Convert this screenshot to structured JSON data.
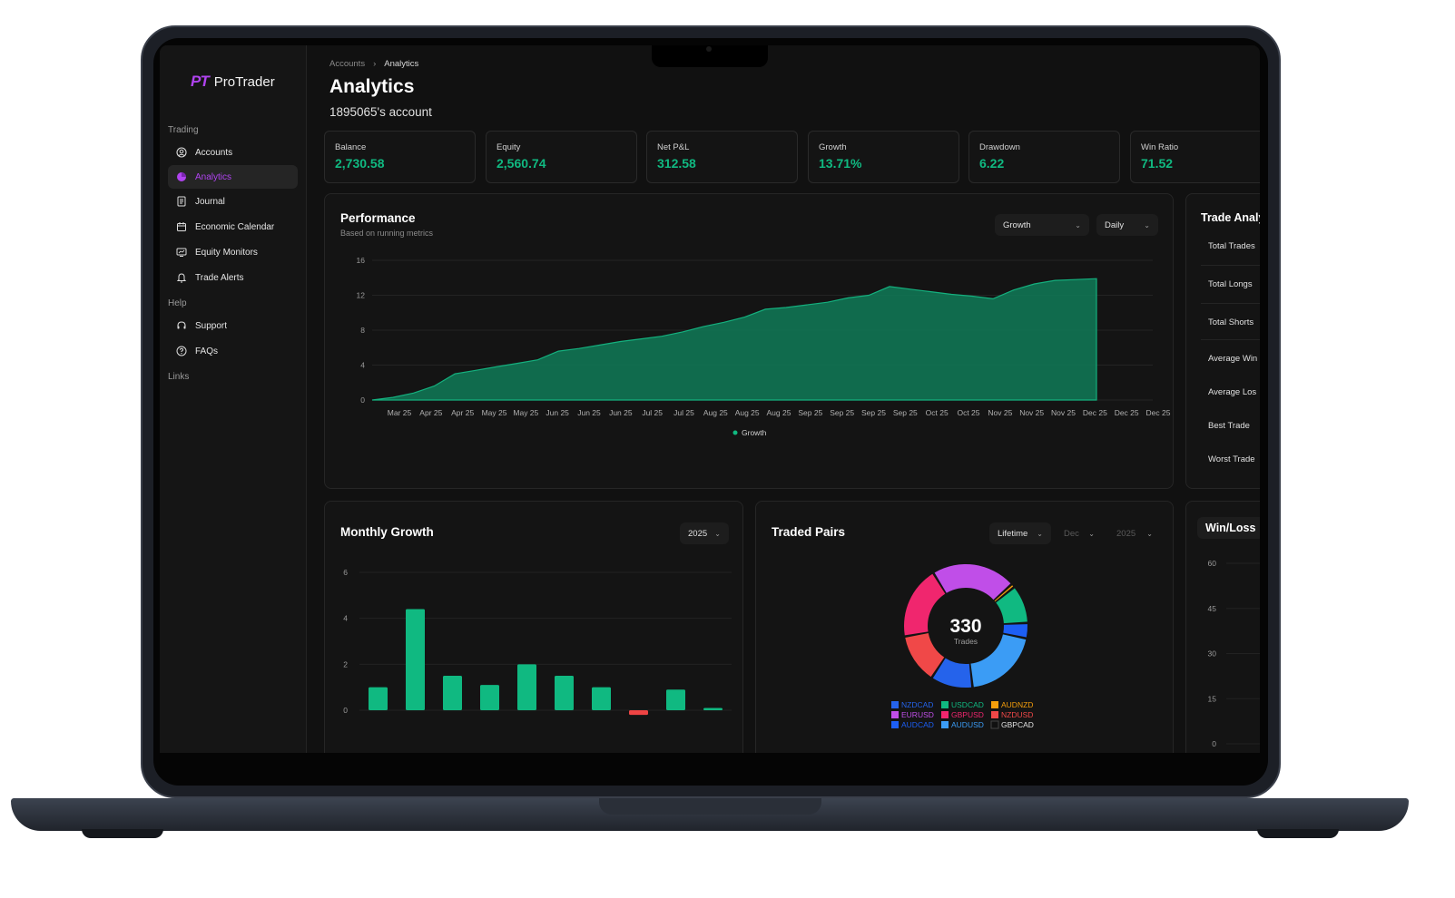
{
  "brand": {
    "mark": "PT",
    "name": "ProTrader"
  },
  "sidebar": {
    "sections": {
      "trading": "Trading",
      "help": "Help",
      "links": "Links"
    },
    "items": [
      {
        "label": "Accounts",
        "icon": "user-circle-icon",
        "active": false
      },
      {
        "label": "Analytics",
        "icon": "pie-chart-icon",
        "active": true
      },
      {
        "label": "Journal",
        "icon": "journal-icon",
        "active": false
      },
      {
        "label": "Economic Calendar",
        "icon": "calendar-icon",
        "active": false
      },
      {
        "label": "Equity Monitors",
        "icon": "monitor-icon",
        "active": false
      },
      {
        "label": "Trade Alerts",
        "icon": "bell-icon",
        "active": false
      }
    ],
    "help_items": [
      {
        "label": "Support",
        "icon": "headset-icon"
      },
      {
        "label": "FAQs",
        "icon": "question-icon"
      }
    ]
  },
  "breadcrumb": {
    "parent": "Accounts",
    "separator": "›",
    "current": "Analytics"
  },
  "page": {
    "title": "Analytics",
    "subtitle": "1895065's account"
  },
  "stats": [
    {
      "label": "Balance",
      "value": "2,730.58"
    },
    {
      "label": "Equity",
      "value": "2,560.74"
    },
    {
      "label": "Net P&L",
      "value": "312.58"
    },
    {
      "label": "Growth",
      "value": "13.71%"
    },
    {
      "label": "Drawdown",
      "value": "6.22"
    },
    {
      "label": "Win Ratio",
      "value": "71.52"
    }
  ],
  "performance": {
    "title": "Performance",
    "subtitle": "Based on running metrics",
    "metric_select": "Growth",
    "period_select": "Daily",
    "legend": "Growth"
  },
  "trade_analysis": {
    "title": "Trade Analy",
    "rows": [
      "Total Trades",
      "Total Longs",
      "Total Shorts",
      "Average Win",
      "Average Los",
      "Best Trade",
      "Worst Trade"
    ]
  },
  "monthly_growth": {
    "title": "Monthly Growth",
    "year_select": "2025"
  },
  "traded_pairs": {
    "title": "Traded Pairs",
    "range_select": "Lifetime",
    "month_select": "Dec",
    "year_select": "2025",
    "center_value": "330",
    "center_label": "Trades",
    "legend": [
      {
        "name": "NZDCAD",
        "color": "#2563eb"
      },
      {
        "name": "USDCAD",
        "color": "#10b981"
      },
      {
        "name": "AUDNZD",
        "color": "#f59e0b"
      },
      {
        "name": "EURUSD",
        "color": "#c04ee8"
      },
      {
        "name": "GBPUSD",
        "color": "#f0266e"
      },
      {
        "name": "NZDUSD",
        "color": "#f04848"
      },
      {
        "name": "AUDCAD",
        "color": "#1d5ff5"
      },
      {
        "name": "AUDUSD",
        "color": "#3b9cf5"
      },
      {
        "name": "GBPCAD",
        "color": "#111111"
      }
    ]
  },
  "win_loss": {
    "title": "Win/Loss"
  },
  "chart_data": [
    {
      "type": "area",
      "title": "Performance",
      "ylim": [
        0,
        16
      ],
      "yticks": [
        0,
        4,
        8,
        12,
        16
      ],
      "xticks": [
        "Mar 25",
        "Apr 25",
        "Apr 25",
        "May 25",
        "May 25",
        "Jun 25",
        "Jun 25",
        "Jun 25",
        "Jul 25",
        "Jul 25",
        "Aug 25",
        "Aug 25",
        "Aug 25",
        "Sep 25",
        "Sep 25",
        "Sep 25",
        "Sep 25",
        "Oct 25",
        "Oct 25",
        "Nov 25",
        "Nov 25",
        "Nov 25",
        "Dec 25",
        "Dec 25",
        "Dec 25"
      ],
      "series": [
        {
          "name": "Growth",
          "color": "#0f7a57",
          "points": [
            0,
            0.3,
            0.8,
            1.6,
            3.0,
            3.4,
            3.8,
            4.2,
            4.6,
            5.6,
            5.9,
            6.3,
            6.7,
            7.0,
            7.3,
            7.8,
            8.4,
            8.9,
            9.5,
            10.4,
            10.6,
            10.9,
            11.2,
            11.7,
            12.0,
            13.0,
            12.7,
            12.4,
            12.1,
            11.9,
            11.6,
            12.6,
            13.3,
            13.7,
            13.8,
            13.9
          ]
        }
      ],
      "grid": true,
      "legend_position": "bottom"
    },
    {
      "type": "bar",
      "title": "Monthly Growth",
      "ylim": [
        0,
        6
      ],
      "yticks": [
        0,
        2,
        4,
        6
      ],
      "values": [
        1.0,
        4.4,
        1.5,
        1.1,
        2.0,
        1.5,
        1.0,
        -0.2,
        0.9,
        0.1
      ],
      "positive_color": "#10b981",
      "negative_color": "#ef4444"
    },
    {
      "type": "pie",
      "title": "Traded Pairs",
      "slices": [
        {
          "name": "EURUSD",
          "value": 22,
          "color": "#c04ee8"
        },
        {
          "name": "AUDNZD",
          "value": 1,
          "color": "#f59e0b"
        },
        {
          "name": "USDCAD",
          "value": 10,
          "color": "#10b981"
        },
        {
          "name": "AUDCAD",
          "value": 4,
          "color": "#1d5ff5"
        },
        {
          "name": "AUDUSD",
          "value": 20,
          "color": "#3b9cf5"
        },
        {
          "name": "NZDCAD",
          "value": 11,
          "color": "#2563eb"
        },
        {
          "name": "NZDUSD",
          "value": 13,
          "color": "#f04848"
        },
        {
          "name": "GBPUSD",
          "value": 19,
          "color": "#f0266e"
        }
      ]
    },
    {
      "type": "bar",
      "title": "Win/Loss",
      "yticks": [
        0,
        15,
        30,
        45,
        60
      ]
    }
  ]
}
